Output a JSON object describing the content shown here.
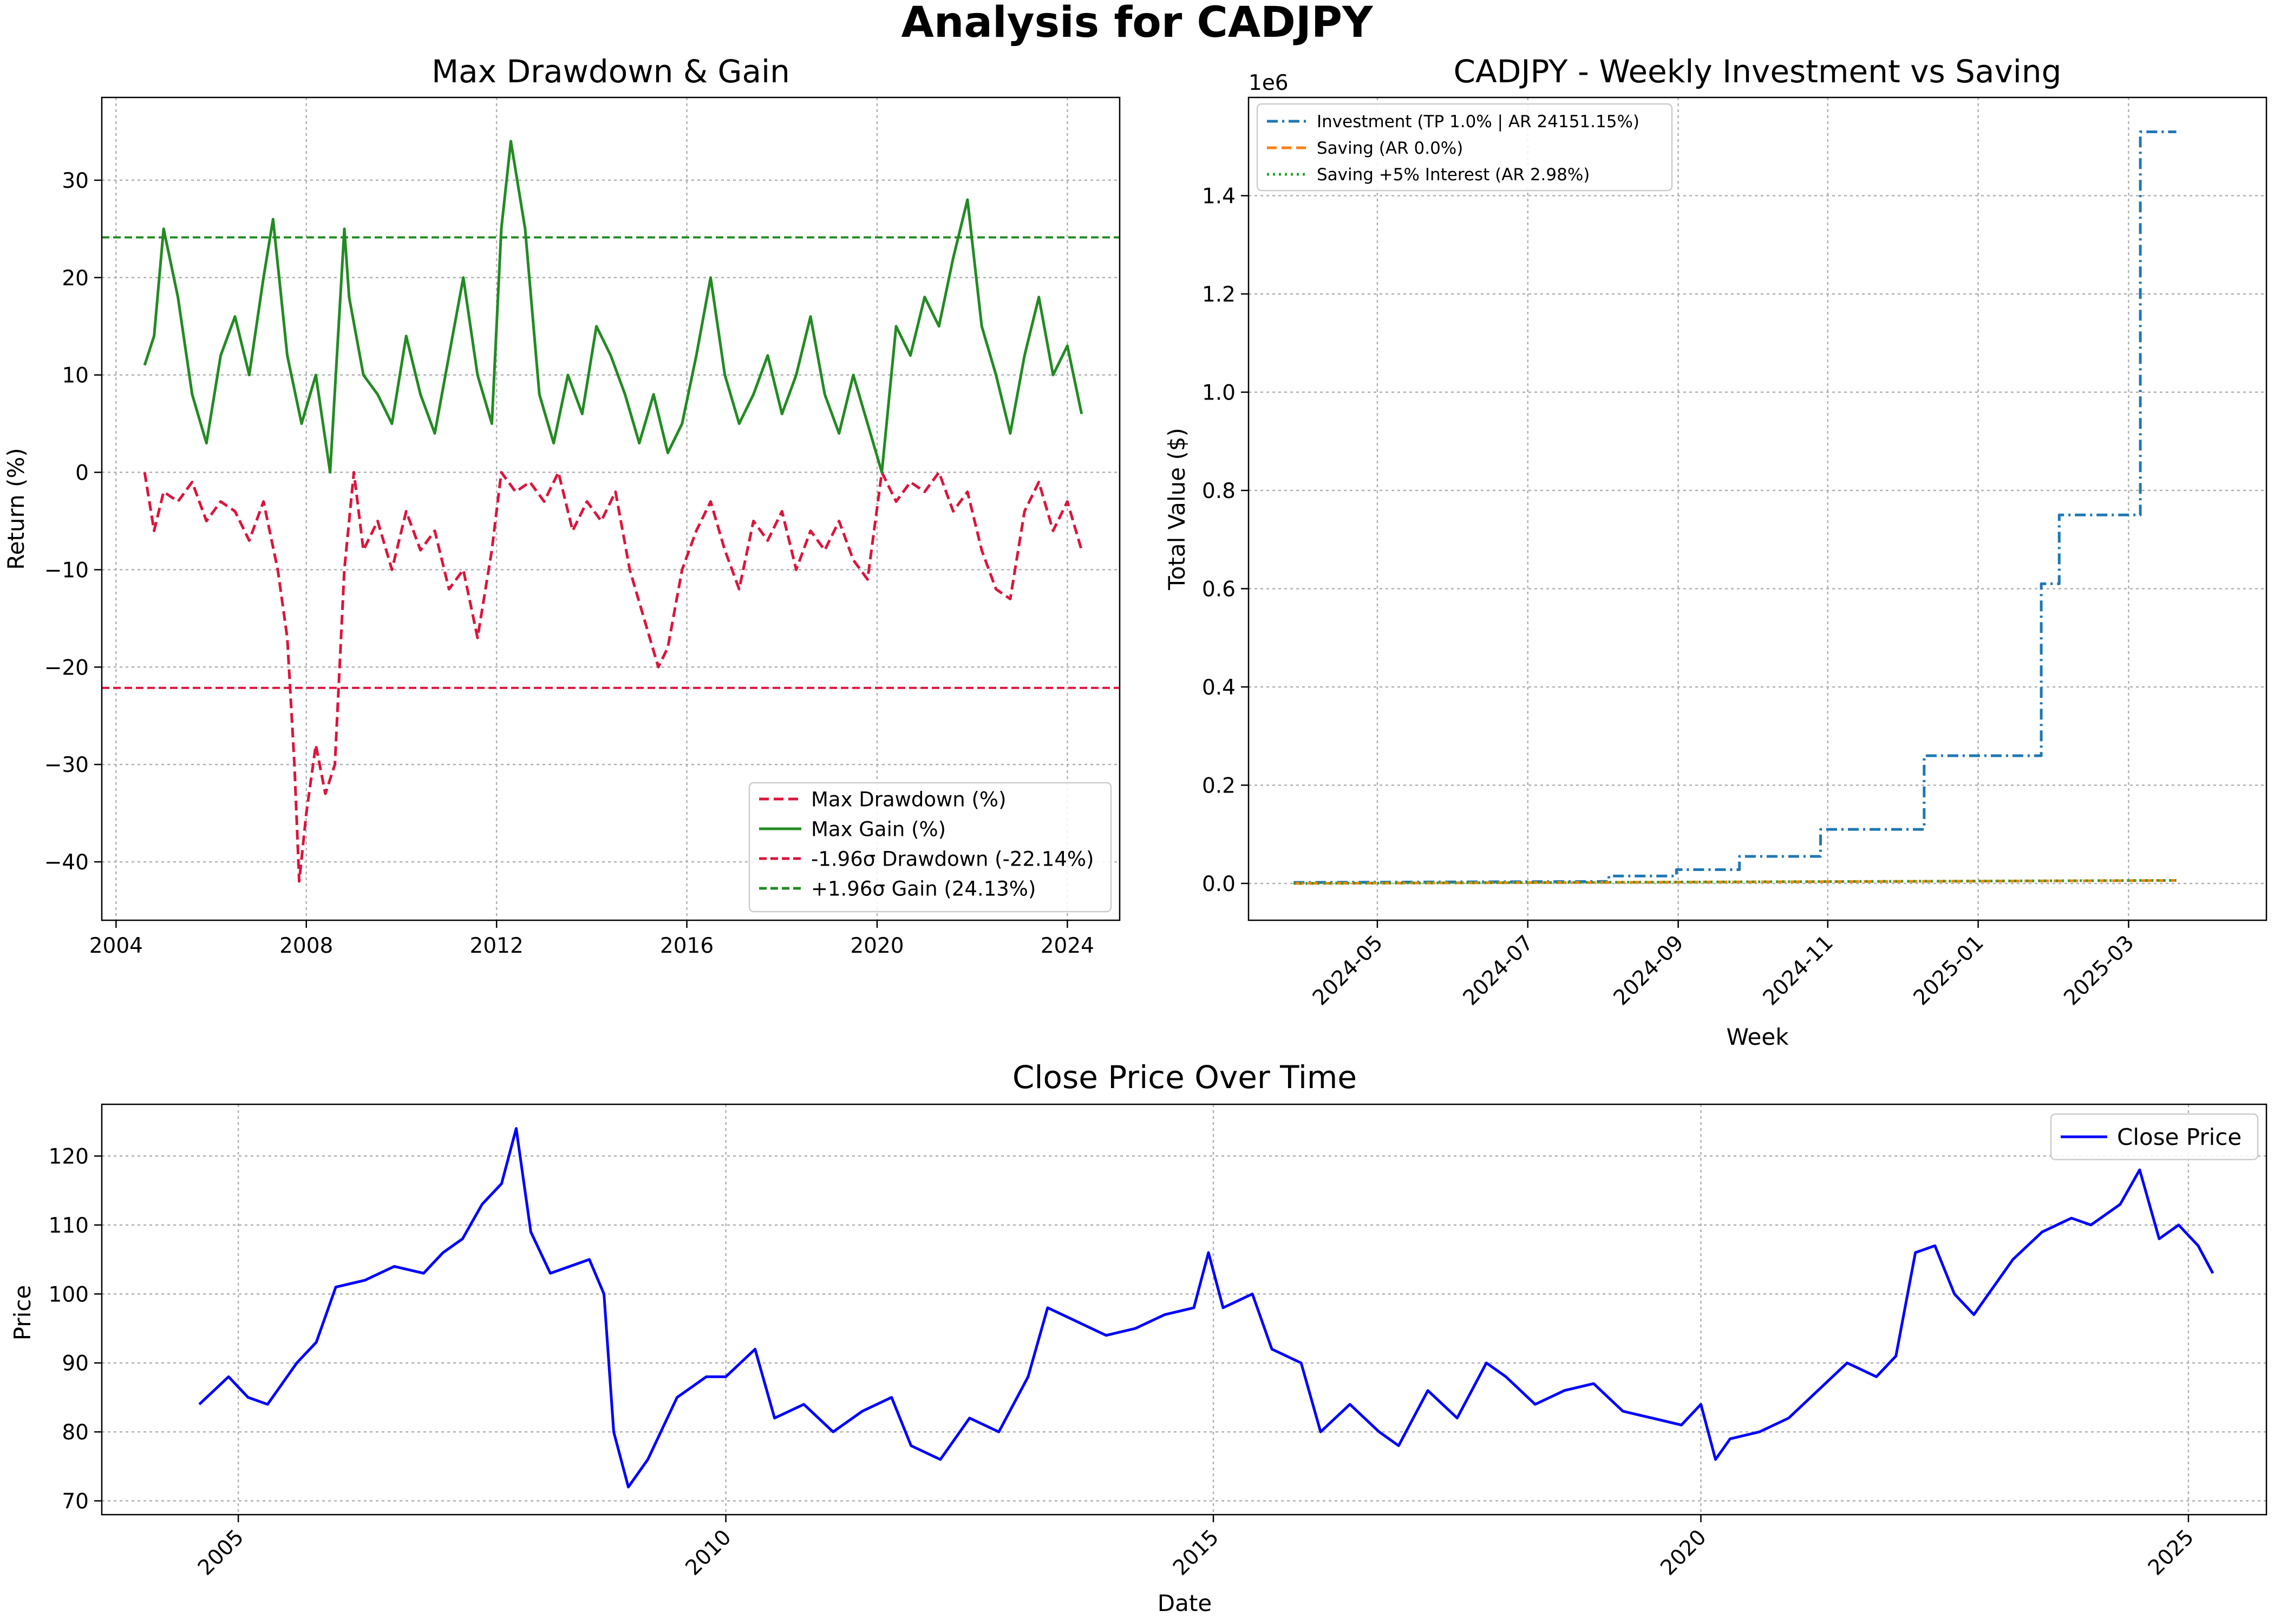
{
  "figure": {
    "suptitle": "Analysis for CADJPY"
  },
  "chart_data": [
    {
      "type": "line",
      "title": "Max Drawdown & Gain",
      "xlabel": "",
      "ylabel": "Return (%)",
      "xlim": [
        2003.7,
        2025.1
      ],
      "ylim": [
        -46,
        38.5
      ],
      "xticks": [
        2004,
        2008,
        2012,
        2016,
        2020,
        2024
      ],
      "yticks": [
        -40,
        -30,
        -20,
        -10,
        0,
        10,
        20,
        30
      ],
      "grid": true,
      "legend_position": "lower-right",
      "series": [
        {
          "name": "Max Drawdown (%)",
          "color": "#dc143c",
          "style": "dashed",
          "x": [
            2004.6,
            2004.8,
            2005.0,
            2005.3,
            2005.6,
            2005.9,
            2006.2,
            2006.5,
            2006.8,
            2007.1,
            2007.4,
            2007.6,
            2007.75,
            2007.85,
            2008.0,
            2008.2,
            2008.4,
            2008.6,
            2008.8,
            2009.0,
            2009.2,
            2009.5,
            2009.8,
            2010.1,
            2010.4,
            2010.7,
            2011.0,
            2011.3,
            2011.6,
            2011.9,
            2012.1,
            2012.4,
            2012.7,
            2013.0,
            2013.3,
            2013.6,
            2013.9,
            2014.2,
            2014.5,
            2014.8,
            2015.1,
            2015.4,
            2015.6,
            2015.9,
            2016.2,
            2016.5,
            2016.8,
            2017.1,
            2017.4,
            2017.7,
            2018.0,
            2018.3,
            2018.6,
            2018.9,
            2019.2,
            2019.5,
            2019.8,
            2020.1,
            2020.4,
            2020.7,
            2021.0,
            2021.3,
            2021.6,
            2021.9,
            2022.2,
            2022.5,
            2022.8,
            2023.1,
            2023.4,
            2023.7,
            2024.0,
            2024.3
          ],
          "y": [
            0,
            -6,
            -2,
            -3,
            -1,
            -5,
            -3,
            -4,
            -7,
            -3,
            -10,
            -17,
            -30,
            -42,
            -35,
            -28,
            -33,
            -30,
            -10,
            0,
            -8,
            -5,
            -10,
            -4,
            -8,
            -6,
            -12,
            -10,
            -17,
            -8,
            0,
            -2,
            -1,
            -3,
            0,
            -6,
            -3,
            -5,
            -2,
            -10,
            -15,
            -20,
            -18,
            -10,
            -6,
            -3,
            -8,
            -12,
            -5,
            -7,
            -4,
            -10,
            -6,
            -8,
            -5,
            -9,
            -11,
            0,
            -3,
            -1,
            -2,
            0,
            -4,
            -2,
            -8,
            -12,
            -13,
            -4,
            -1,
            -6,
            -3,
            -8
          ]
        },
        {
          "name": "Max Gain (%)",
          "color": "#228b22",
          "style": "solid",
          "x": [
            2004.6,
            2004.8,
            2005.0,
            2005.3,
            2005.6,
            2005.9,
            2006.2,
            2006.5,
            2006.8,
            2007.1,
            2007.3,
            2007.6,
            2007.9,
            2008.2,
            2008.5,
            2008.8,
            2008.9,
            2009.2,
            2009.5,
            2009.8,
            2010.1,
            2010.4,
            2010.7,
            2011.0,
            2011.3,
            2011.6,
            2011.9,
            2012.1,
            2012.3,
            2012.6,
            2012.9,
            2013.2,
            2013.5,
            2013.8,
            2014.1,
            2014.4,
            2014.7,
            2015.0,
            2015.3,
            2015.6,
            2015.9,
            2016.2,
            2016.5,
            2016.8,
            2017.1,
            2017.4,
            2017.7,
            2018.0,
            2018.3,
            2018.6,
            2018.9,
            2019.2,
            2019.5,
            2019.8,
            2020.1,
            2020.4,
            2020.7,
            2021.0,
            2021.3,
            2021.6,
            2021.9,
            2022.2,
            2022.5,
            2022.8,
            2023.1,
            2023.4,
            2023.7,
            2024.0,
            2024.3
          ],
          "y": [
            11,
            14,
            25,
            18,
            8,
            3,
            12,
            16,
            10,
            20,
            26,
            12,
            5,
            10,
            0,
            25,
            18,
            10,
            8,
            5,
            14,
            8,
            4,
            12,
            20,
            10,
            5,
            25,
            34,
            25,
            8,
            3,
            10,
            6,
            15,
            12,
            8,
            3,
            8,
            2,
            5,
            12,
            20,
            10,
            5,
            8,
            12,
            6,
            10,
            16,
            8,
            4,
            10,
            5,
            0,
            15,
            12,
            18,
            15,
            22,
            28,
            15,
            10,
            4,
            12,
            18,
            10,
            13,
            6
          ]
        },
        {
          "name": "-1.96σ Drawdown (-22.14%)",
          "color": "#dc143c",
          "style": "dashed-hline",
          "y_const": -22.14
        },
        {
          "name": "+1.96σ Gain (24.13%)",
          "color": "#228b22",
          "style": "dashed-hline",
          "y_const": 24.13
        }
      ]
    },
    {
      "type": "line",
      "title": "CADJPY - Weekly Investment vs Saving",
      "xlabel": "Week",
      "ylabel": "Total Value ($)",
      "y_offset_text": "1e6",
      "xlim": [
        2024.19,
        2025.32
      ],
      "ylim": [
        -0.075,
        1.6
      ],
      "xticks": [
        "2024-05",
        "2024-07",
        "2024-09",
        "2024-11",
        "2025-01",
        "2025-03"
      ],
      "xtick_pos": [
        2024.333,
        2024.5,
        2024.667,
        2024.833,
        2025.0,
        2025.167
      ],
      "yticks": [
        "0.0",
        "0.2",
        "0.4",
        "0.6",
        "0.8",
        "1.0",
        "1.2",
        "1.4"
      ],
      "ytick_values": [
        0.0,
        0.2,
        0.4,
        0.6,
        0.8,
        1.0,
        1.2,
        1.4
      ],
      "grid": true,
      "legend_position": "top-left",
      "series": [
        {
          "name": "Investment (TP 1.0% | AR 24151.15%)",
          "color": "#1f77b4",
          "style": "dashdot-step",
          "x": [
            2024.24,
            2024.59,
            2024.59,
            2024.665,
            2024.665,
            2024.735,
            2024.735,
            2024.825,
            2024.825,
            2024.94,
            2024.94,
            2025.07,
            2025.07,
            2025.09,
            2025.09,
            2025.18,
            2025.18,
            2025.22
          ],
          "y": [
            0.002,
            0.004,
            0.015,
            0.015,
            0.028,
            0.028,
            0.055,
            0.055,
            0.11,
            0.11,
            0.26,
            0.26,
            0.61,
            0.61,
            0.75,
            0.75,
            1.53,
            1.53
          ]
        },
        {
          "name": "Saving (AR 0.0%)",
          "color": "#ff7f0e",
          "style": "dashed",
          "x": [
            2024.24,
            2025.22
          ],
          "y": [
            0.0,
            0.006
          ]
        },
        {
          "name": "Saving +5% Interest (AR 2.98%)",
          "color": "#2ca02c",
          "style": "dotted",
          "x": [
            2024.24,
            2025.22
          ],
          "y": [
            0.0,
            0.0062
          ]
        }
      ]
    },
    {
      "type": "line",
      "title": "Close Price Over Time",
      "xlabel": "Date",
      "ylabel": "Price",
      "xlim": [
        2003.6,
        2025.8
      ],
      "ylim": [
        68,
        127.5
      ],
      "xticks": [
        2005,
        2010,
        2015,
        2020,
        2025
      ],
      "yticks": [
        70,
        80,
        90,
        100,
        110,
        120
      ],
      "grid": true,
      "legend_position": "top-right",
      "series": [
        {
          "name": "Close Price",
          "color": "#0000ff",
          "style": "solid",
          "x": [
            2004.6,
            2004.9,
            2005.1,
            2005.3,
            2005.6,
            2005.8,
            2006.0,
            2006.3,
            2006.6,
            2006.9,
            2007.1,
            2007.3,
            2007.5,
            2007.7,
            2007.85,
            2008.0,
            2008.2,
            2008.4,
            2008.6,
            2008.75,
            2008.85,
            2009.0,
            2009.2,
            2009.5,
            2009.8,
            2010.0,
            2010.3,
            2010.5,
            2010.8,
            2011.1,
            2011.4,
            2011.7,
            2011.9,
            2012.2,
            2012.5,
            2012.8,
            2013.1,
            2013.3,
            2013.6,
            2013.9,
            2014.2,
            2014.5,
            2014.8,
            2014.95,
            2015.1,
            2015.4,
            2015.6,
            2015.9,
            2016.1,
            2016.4,
            2016.7,
            2016.9,
            2017.2,
            2017.5,
            2017.8,
            2018.0,
            2018.3,
            2018.6,
            2018.9,
            2019.2,
            2019.5,
            2019.8,
            2020.0,
            2020.15,
            2020.3,
            2020.6,
            2020.9,
            2021.2,
            2021.5,
            2021.8,
            2022.0,
            2022.2,
            2022.4,
            2022.6,
            2022.8,
            2022.95,
            2023.2,
            2023.5,
            2023.8,
            2024.0,
            2024.3,
            2024.5,
            2024.7,
            2024.9,
            2025.1,
            2025.25
          ],
          "y": [
            84,
            88,
            85,
            84,
            90,
            93,
            101,
            102,
            104,
            103,
            106,
            108,
            113,
            116,
            124,
            109,
            103,
            104,
            105,
            100,
            80,
            72,
            76,
            85,
            88,
            88,
            92,
            82,
            84,
            80,
            83,
            85,
            78,
            76,
            82,
            80,
            88,
            98,
            96,
            94,
            95,
            97,
            98,
            106,
            98,
            100,
            92,
            90,
            80,
            84,
            80,
            78,
            86,
            82,
            90,
            88,
            84,
            86,
            87,
            83,
            82,
            81,
            84,
            76,
            79,
            80,
            82,
            86,
            90,
            88,
            91,
            106,
            107,
            100,
            97,
            100,
            105,
            109,
            111,
            110,
            113,
            118,
            108,
            110,
            107,
            103
          ]
        }
      ]
    }
  ]
}
